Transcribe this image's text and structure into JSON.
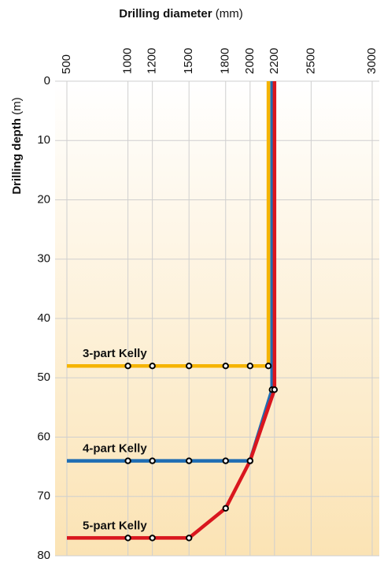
{
  "chart_data": {
    "type": "line",
    "x_label": {
      "text": "Drilling diameter",
      "unit": "(mm)"
    },
    "y_label": {
      "text": "Drilling depth",
      "unit": "(m)"
    },
    "xlim": [
      500,
      3000
    ],
    "xticks": [
      500,
      1000,
      1200,
      1500,
      1800,
      2000,
      2200,
      2500,
      3000
    ],
    "ylim": [
      0,
      80
    ],
    "yticks": [
      0,
      10,
      20,
      30,
      40,
      50,
      60,
      70,
      80
    ],
    "grid": true,
    "series": [
      {
        "name": "3-part Kelly",
        "color": "#f5b400",
        "x": [
          500,
          1000,
          1200,
          1500,
          1800,
          2000,
          2150,
          2150
        ],
        "values": [
          48,
          48,
          48,
          48,
          48,
          48,
          48,
          0
        ]
      },
      {
        "name": "4-part Kelly",
        "color": "#1f6db3",
        "x": [
          500,
          1000,
          1200,
          1500,
          1800,
          2000,
          2180,
          2180
        ],
        "values": [
          64,
          64,
          64,
          64,
          64,
          64,
          52,
          0
        ]
      },
      {
        "name": "5-part Kelly",
        "color": "#d9161e",
        "x": [
          500,
          1000,
          1200,
          1500,
          1800,
          2000,
          2200,
          2200
        ],
        "values": [
          77,
          77,
          77,
          77,
          72,
          64,
          52,
          0
        ]
      }
    ]
  }
}
